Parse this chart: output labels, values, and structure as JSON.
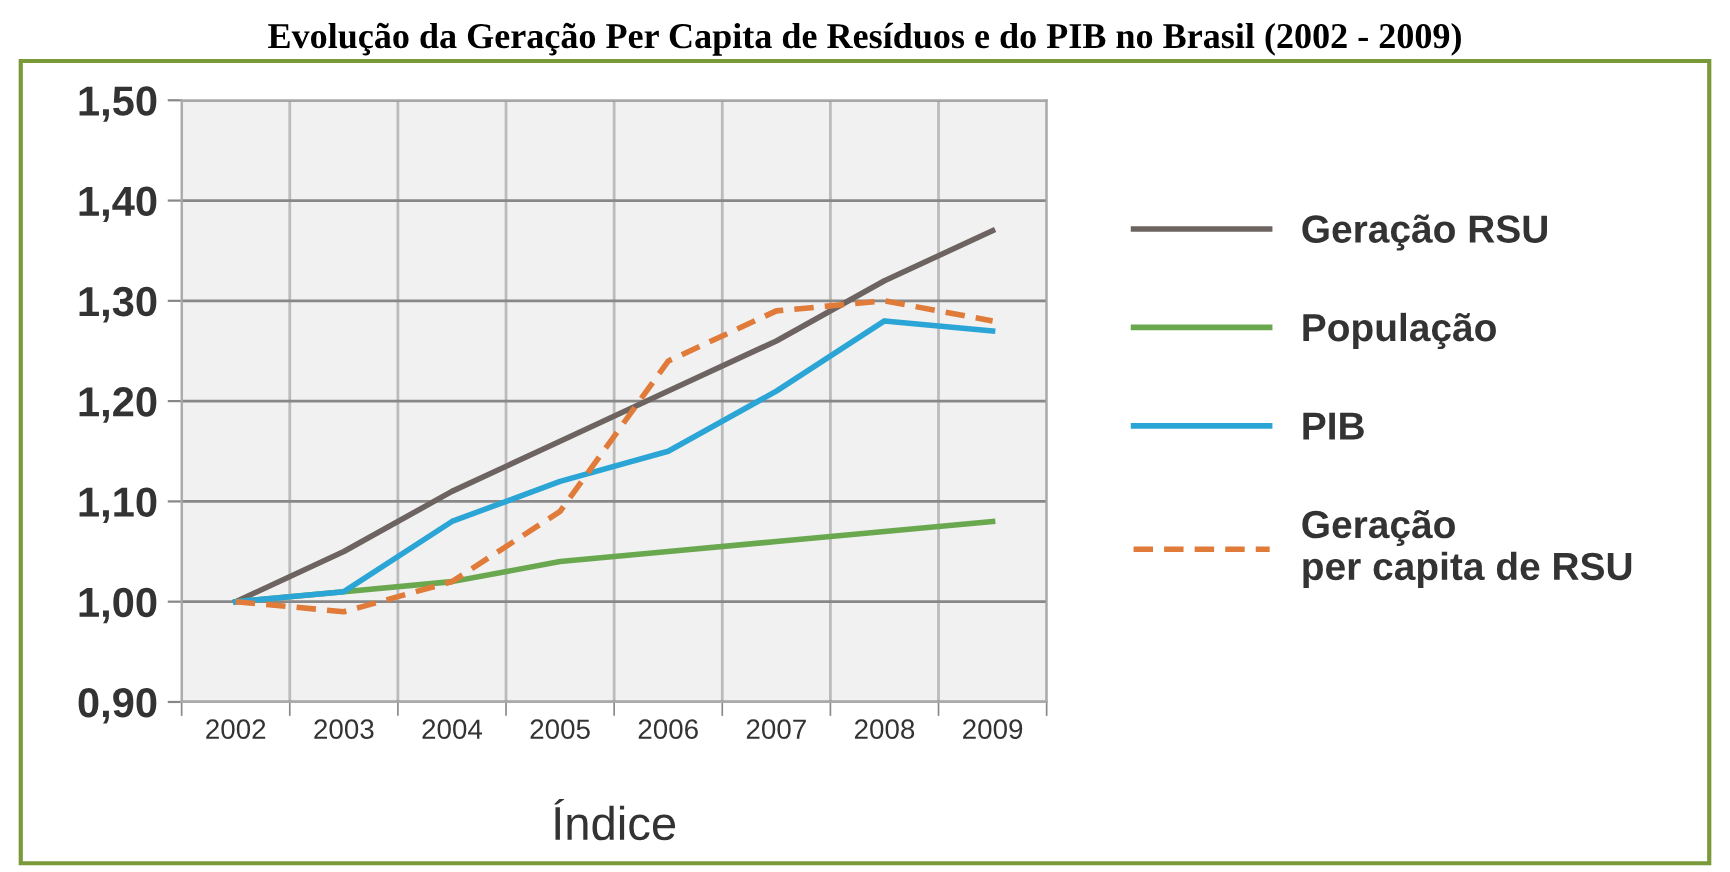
{
  "chart_data": {
    "type": "line",
    "title": "Evolução da Geração Per Capita de Resíduos e do PIB no Brasil (2002 - 2009)",
    "xlabel": "Índice",
    "categories": [
      "2002",
      "2003",
      "2004",
      "2005",
      "2006",
      "2007",
      "2008",
      "2009"
    ],
    "series": [
      {
        "name": "Geração RSU",
        "color": "#6d6461",
        "values": [
          1.0,
          1.05,
          1.11,
          1.16,
          1.21,
          1.26,
          1.32,
          1.37
        ]
      },
      {
        "name": "População",
        "color": "#6aa84f",
        "values": [
          1.0,
          1.01,
          1.02,
          1.04,
          1.05,
          1.06,
          1.07,
          1.08
        ]
      },
      {
        "name": "PIB",
        "color": "#2aa5d6",
        "values": [
          1.0,
          1.01,
          1.08,
          1.12,
          1.15,
          1.21,
          1.28,
          1.27
        ]
      },
      {
        "name": "Geração\nper capita de RSU",
        "color": "#e07b39",
        "line_style": "dashed",
        "values": [
          1.0,
          0.99,
          1.02,
          1.09,
          1.24,
          1.29,
          1.3,
          1.28
        ]
      }
    ],
    "ylim": [
      0.9,
      1.5
    ],
    "yticks": [
      {
        "value": 0.9,
        "label": "0,90"
      },
      {
        "value": 1.0,
        "label": "1,00"
      },
      {
        "value": 1.1,
        "label": "1,10"
      },
      {
        "value": 1.2,
        "label": "1,20"
      },
      {
        "value": 1.3,
        "label": "1,30"
      },
      {
        "value": 1.4,
        "label": "1,40"
      },
      {
        "value": 1.5,
        "label": "1,50"
      }
    ],
    "grid": true,
    "legend": "right",
    "line_style": "solid"
  }
}
